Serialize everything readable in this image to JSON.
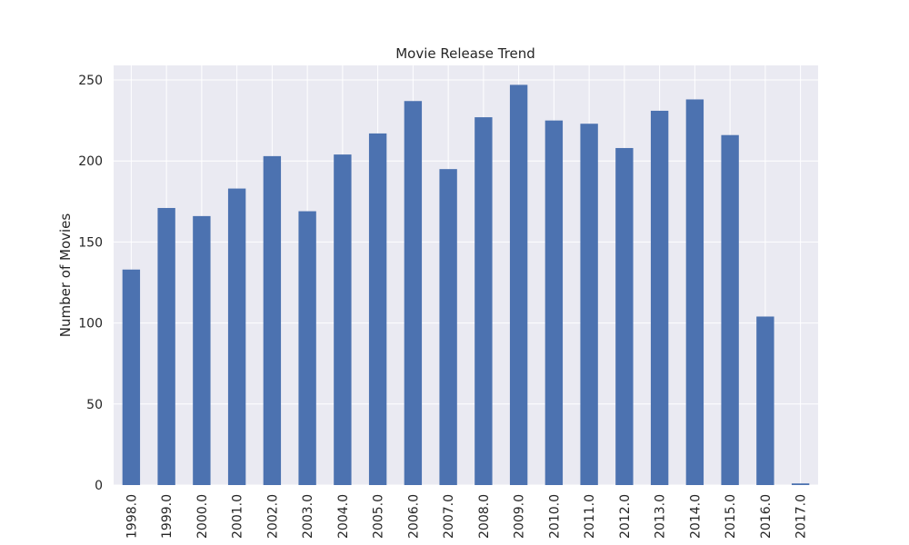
{
  "chart_data": {
    "type": "bar",
    "title": "Movie Release Trend",
    "xlabel": "",
    "ylabel": "Number of Movies",
    "categories": [
      "1998.0",
      "1999.0",
      "2000.0",
      "2001.0",
      "2002.0",
      "2003.0",
      "2004.0",
      "2005.0",
      "2006.0",
      "2007.0",
      "2008.0",
      "2009.0",
      "2010.0",
      "2011.0",
      "2012.0",
      "2013.0",
      "2014.0",
      "2015.0",
      "2016.0",
      "2017.0"
    ],
    "values": [
      133,
      171,
      166,
      183,
      203,
      169,
      204,
      217,
      237,
      195,
      227,
      247,
      225,
      223,
      208,
      231,
      238,
      216,
      104,
      1
    ],
    "ylim": [
      0,
      259
    ],
    "yticks": [
      0,
      50,
      100,
      150,
      200,
      250
    ],
    "grid": true,
    "colors": {
      "bar": "#4c72b0",
      "plot_background": "#eaeaf2",
      "grid": "#ffffff",
      "text": "#262626"
    }
  }
}
